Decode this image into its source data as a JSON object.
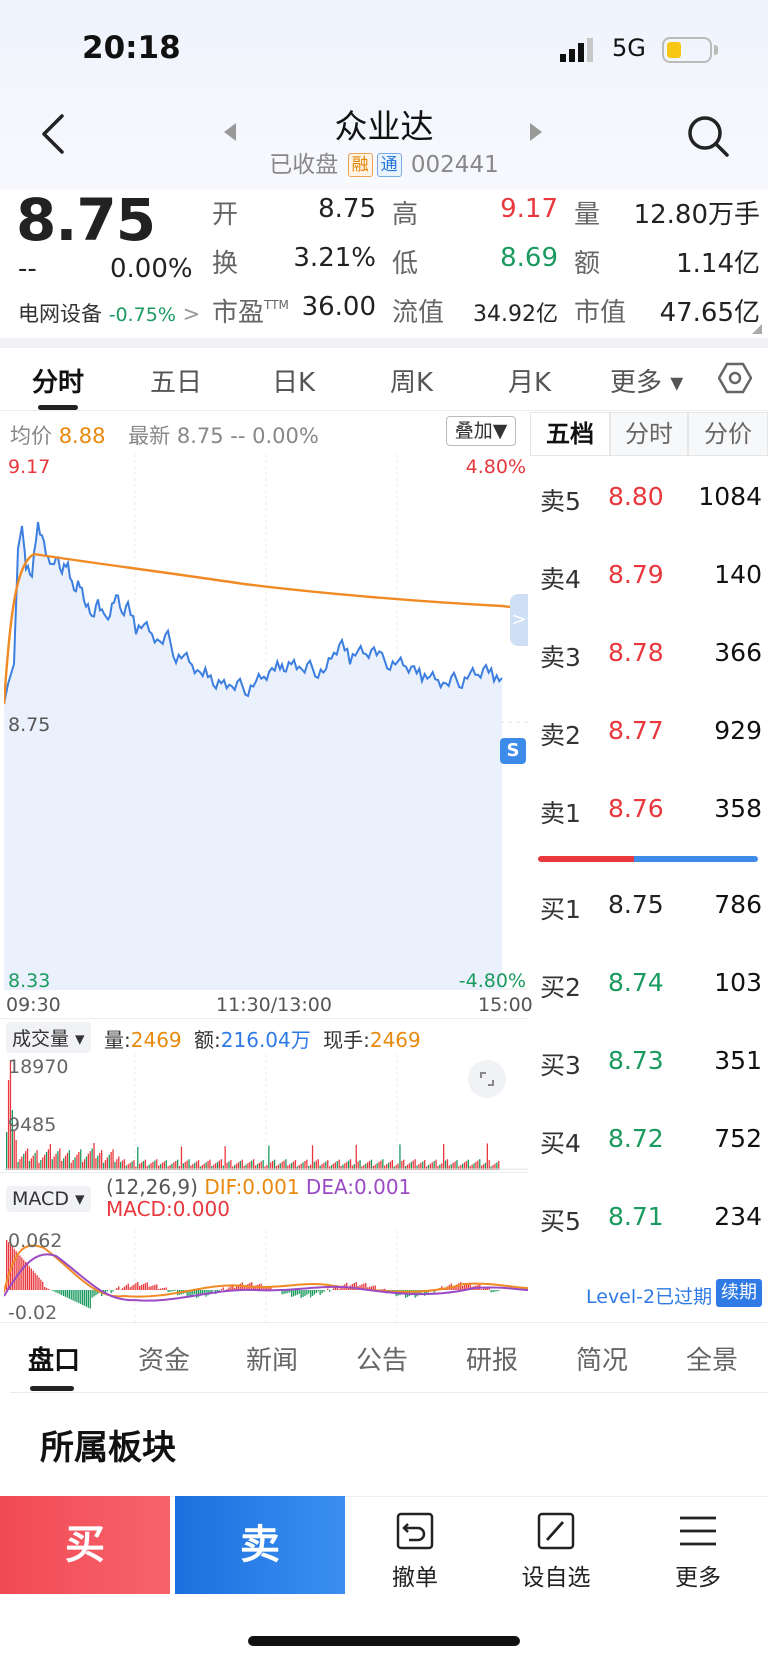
{
  "status": {
    "time": "20:18",
    "network": "5G"
  },
  "header": {
    "title": "众业达",
    "status": "已收盘",
    "tag_rong": "融",
    "tag_tong": "通",
    "code": "002441"
  },
  "quote": {
    "price": "8.75",
    "change": "--",
    "change_pct": "0.00%",
    "open_label": "开",
    "open": "8.75",
    "high_label": "高",
    "high": "9.17",
    "volume_label": "量",
    "volume": "12.80万手",
    "turnover_label": "换",
    "turnover": "3.21%",
    "low_label": "低",
    "low": "8.69",
    "amount_label": "额",
    "amount": "1.14亿",
    "sector": "电网设备",
    "sector_pct": "-0.75%",
    "pe_label": "市盈TTM",
    "pe": "36.00",
    "float_cap_label": "流值",
    "float_cap": "34.92亿",
    "mkt_cap_label": "市值",
    "mkt_cap": "47.65亿"
  },
  "tabs": [
    "分时",
    "五日",
    "日K",
    "周K",
    "月K",
    "更多 ▾"
  ],
  "chart": {
    "avg_label": "均价",
    "avg_value": "8.88",
    "latest_label": "最新",
    "latest_value": "8.75",
    "latest_change": "--",
    "latest_pct": "0.00%",
    "overlay_btn": "叠加▼",
    "y_top": "9.17",
    "y_mid": "8.75",
    "y_bottom": "8.33",
    "pct_top": "4.80%",
    "pct_bottom": "-4.80%",
    "t_start": "09:30",
    "t_mid": "11:30/13:00",
    "t_end": "15:00",
    "s_badge": "S"
  },
  "volume_panel": {
    "selector": "成交量 ▾",
    "vol_label": "量:",
    "vol": "2469",
    "amt_label": "额:",
    "amt": "216.04万",
    "hand_label": "现手:",
    "hand": "2469",
    "y_top": "18970",
    "y_mid": "9485"
  },
  "macd_panel": {
    "selector": "MACD ▾",
    "params": "(12,26,9)",
    "dif_label": "DIF:0.001",
    "dea_label": "DEA:0.001",
    "macd_label": "MACD:0.000",
    "y_top": "0.062",
    "y_bottom": "-0.02"
  },
  "order_book": {
    "tabs": [
      "五档",
      "分时",
      "分价"
    ],
    "asks": [
      {
        "label": "卖5",
        "price": "8.80",
        "vol": "1084"
      },
      {
        "label": "卖4",
        "price": "8.79",
        "vol": "140"
      },
      {
        "label": "卖3",
        "price": "8.78",
        "vol": "366"
      },
      {
        "label": "卖2",
        "price": "8.77",
        "vol": "929"
      },
      {
        "label": "卖1",
        "price": "8.76",
        "vol": "358"
      }
    ],
    "bids": [
      {
        "label": "买1",
        "price": "8.75",
        "vol": "786"
      },
      {
        "label": "买2",
        "price": "8.74",
        "vol": "103"
      },
      {
        "label": "买3",
        "price": "8.73",
        "vol": "351"
      },
      {
        "label": "买4",
        "price": "8.72",
        "vol": "752"
      },
      {
        "label": "买5",
        "price": "8.71",
        "vol": "234"
      }
    ],
    "level2_text": "Level-2已过期",
    "renew": "续期"
  },
  "bottom_tabs": [
    "盘口",
    "资金",
    "新闻",
    "公告",
    "研报",
    "简况",
    "全景"
  ],
  "section_title": "所属板块",
  "actions": {
    "buy": "买",
    "sell": "卖",
    "cancel": "撤单",
    "watch": "设自选",
    "more": "更多"
  },
  "colors": {
    "up": "#e8383d",
    "down": "#1a9a5f",
    "price_line": "#3d7fe0",
    "avg_line": "#f08a24"
  }
}
